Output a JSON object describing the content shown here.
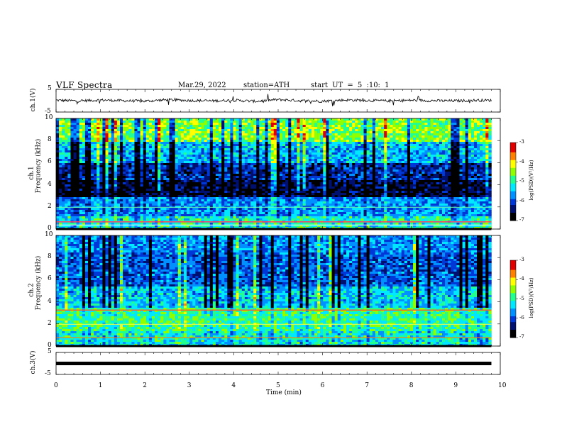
{
  "header": {
    "title": "VLF Spectra",
    "date": "Mar.29, 2022",
    "station": "station=ATH",
    "start": "start UT =  5 :10: 1"
  },
  "colors": {
    "waveform": "#000000",
    "colormap": [
      "#000000",
      "#001070",
      "#0038d8",
      "#0090ff",
      "#00e8ff",
      "#20ff90",
      "#90ff00",
      "#ffff00",
      "#ff8000",
      "#e00000",
      "#ffffff"
    ]
  },
  "chart_data": [
    {
      "type": "line",
      "panel": "ch1",
      "ylabel": "ch.1(V)",
      "ylim": [
        -5,
        5
      ],
      "yticks": [
        "5",
        "-5"
      ],
      "x": [
        0,
        0.5,
        1.0,
        1.5,
        2.0,
        2.5,
        3.0,
        3.5,
        4.0,
        4.5,
        5.0,
        5.5,
        6.0,
        6.5,
        7.0,
        7.5,
        8.0,
        8.5,
        9.0,
        9.5,
        9.8
      ],
      "y": [
        0.2,
        -0.1,
        0.3,
        0.0,
        -0.2,
        0.4,
        0.1,
        -0.1,
        0.2,
        -0.3,
        0.5,
        0.0,
        -0.2,
        0.3,
        0.1,
        -0.1,
        0.2,
        0.0,
        -0.1,
        0.2,
        0.1
      ]
    },
    {
      "type": "heatmap",
      "panel": "ch1",
      "channel": "ch.1",
      "ylabel": "Frequency  (kHz)",
      "ylim": [
        0,
        10
      ],
      "yticks": [
        "0",
        "2",
        "4",
        "6",
        "8",
        "10"
      ],
      "colorbar": {
        "label": "log(PSD)(V²/Hz)",
        "range": [
          -7,
          -3
        ],
        "ticks": [
          "-3",
          "-4",
          "-5",
          "-6",
          "-7"
        ]
      }
    },
    {
      "type": "heatmap",
      "panel": "ch2",
      "channel": "ch.2",
      "ylabel": "Frequency  (kHz)",
      "ylim": [
        0,
        10
      ],
      "yticks": [
        "0",
        "2",
        "4",
        "6",
        "8",
        "10"
      ],
      "colorbar": {
        "label": "log(PSD)(V²/Hz)",
        "range": [
          -7,
          -3
        ],
        "ticks": [
          "-3",
          "-4",
          "-5",
          "-6",
          "-7"
        ]
      }
    },
    {
      "type": "line",
      "panel": "ch3",
      "ylabel": "ch.3(V)",
      "ylim": [
        -5,
        5
      ],
      "yticks": [
        "5",
        "-5"
      ],
      "x": [
        0,
        9.8
      ],
      "y": [
        0,
        0
      ]
    }
  ],
  "xaxis": {
    "label": "Time  (min)",
    "range": [
      0,
      10
    ],
    "ticks": [
      "0",
      "1",
      "2",
      "3",
      "4",
      "5",
      "6",
      "7",
      "8",
      "9",
      "10"
    ]
  }
}
